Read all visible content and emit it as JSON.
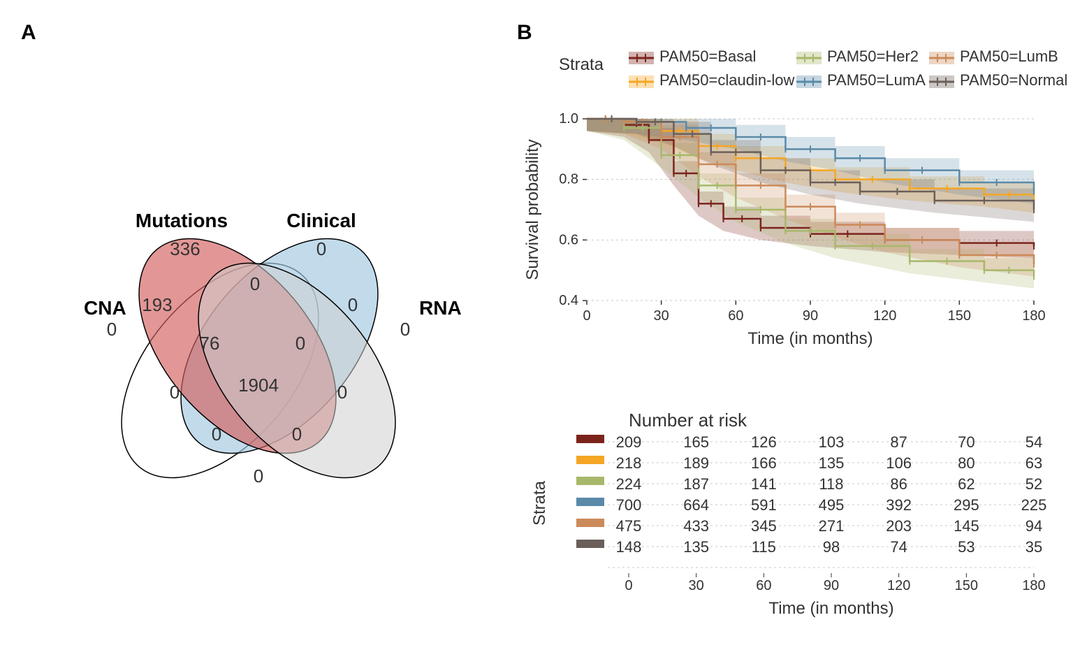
{
  "labels": {
    "panelA": "A",
    "panelB": "B"
  },
  "venn": {
    "set_labels": {
      "mutations": "Mutations",
      "clinical": "Clinical",
      "cna": "CNA",
      "rna": "RNA"
    },
    "set_colors": {
      "mutations": "#a2c8e0",
      "clinical": "#d2605e",
      "cna": "#ffffff",
      "rna": "#d0d0d0"
    },
    "stroke": "#000000",
    "stroke_width": 1.5,
    "label_fontsize": 28,
    "value_fontsize": 26,
    "values": {
      "mutations_only": "336",
      "clinical_only": "0",
      "cna_only": "0",
      "rna_only": "0",
      "mut_cna": "193",
      "mut_clin": "0",
      "clin_rna": "0",
      "mut_cna_clin": "76",
      "mut_clin_rna": "0",
      "center": "1904",
      "cna_clin": "0",
      "mut_rna": "0",
      "cna_rna": "0",
      "cna_clin_rna": "0",
      "bottom": "0"
    }
  },
  "survival": {
    "legend_title": "Strata",
    "legend_fontsize": 22,
    "strata": [
      {
        "label": "PAM50=Basal",
        "color": "#7b241c"
      },
      {
        "label": "PAM50=claudin-low",
        "color": "#f5a623"
      },
      {
        "label": "PAM50=Her2",
        "color": "#a8b86a"
      },
      {
        "label": "PAM50=LumA",
        "color": "#5a8aa8"
      },
      {
        "label": "PAM50=LumB",
        "color": "#cb8a5a"
      },
      {
        "label": "PAM50=Normal",
        "color": "#6b5f5a"
      }
    ],
    "ylabel": "Survival probability",
    "xlabel": "Time (in months)",
    "axis_fontsize": 24,
    "tick_fontsize": 20,
    "ylim": [
      0.4,
      1.0
    ],
    "yticks": [
      0.4,
      0.6,
      0.8,
      1.0
    ],
    "xlim": [
      0,
      180
    ],
    "xticks": [
      0,
      30,
      60,
      90,
      120,
      150,
      180
    ],
    "grid_color": "#c8c8c8",
    "background": "#ffffff",
    "ribbon_opacity": 0.25,
    "series": {
      "Basal": [
        [
          0,
          1.0
        ],
        [
          15,
          0.98
        ],
        [
          25,
          0.93
        ],
        [
          35,
          0.82
        ],
        [
          45,
          0.72
        ],
        [
          55,
          0.67
        ],
        [
          70,
          0.64
        ],
        [
          90,
          0.62
        ],
        [
          120,
          0.6
        ],
        [
          150,
          0.59
        ],
        [
          180,
          0.58
        ]
      ],
      "claudin-low": [
        [
          0,
          1.0
        ],
        [
          15,
          0.99
        ],
        [
          30,
          0.96
        ],
        [
          45,
          0.91
        ],
        [
          60,
          0.87
        ],
        [
          80,
          0.83
        ],
        [
          100,
          0.8
        ],
        [
          130,
          0.77
        ],
        [
          160,
          0.75
        ],
        [
          180,
          0.73
        ]
      ],
      "Her2": [
        [
          0,
          1.0
        ],
        [
          15,
          0.97
        ],
        [
          30,
          0.88
        ],
        [
          45,
          0.78
        ],
        [
          60,
          0.7
        ],
        [
          80,
          0.63
        ],
        [
          100,
          0.58
        ],
        [
          130,
          0.53
        ],
        [
          160,
          0.5
        ],
        [
          180,
          0.48
        ]
      ],
      "LumA": [
        [
          0,
          1.0
        ],
        [
          20,
          0.99
        ],
        [
          40,
          0.97
        ],
        [
          60,
          0.94
        ],
        [
          80,
          0.9
        ],
        [
          100,
          0.87
        ],
        [
          120,
          0.83
        ],
        [
          150,
          0.79
        ],
        [
          180,
          0.76
        ]
      ],
      "LumB": [
        [
          0,
          1.0
        ],
        [
          15,
          0.99
        ],
        [
          30,
          0.94
        ],
        [
          45,
          0.85
        ],
        [
          60,
          0.78
        ],
        [
          80,
          0.71
        ],
        [
          100,
          0.65
        ],
        [
          120,
          0.6
        ],
        [
          150,
          0.55
        ],
        [
          180,
          0.52
        ]
      ],
      "Normal": [
        [
          0,
          1.0
        ],
        [
          20,
          0.99
        ],
        [
          35,
          0.95
        ],
        [
          50,
          0.89
        ],
        [
          70,
          0.83
        ],
        [
          90,
          0.79
        ],
        [
          110,
          0.76
        ],
        [
          140,
          0.73
        ],
        [
          180,
          0.7
        ]
      ]
    }
  },
  "risk_table": {
    "title": "Number at risk",
    "title_fontsize": 26,
    "ylabel": "Strata",
    "xlabel": "Time (in months)",
    "xticks": [
      0,
      30,
      60,
      90,
      120,
      150,
      180
    ],
    "value_fontsize": 22,
    "grid_color": "#c8c8c8",
    "rows": [
      {
        "color": "#7b241c",
        "values": [
          209,
          165,
          126,
          103,
          87,
          70,
          54
        ]
      },
      {
        "color": "#f5a623",
        "values": [
          218,
          189,
          166,
          135,
          106,
          80,
          63
        ]
      },
      {
        "color": "#a8b86a",
        "values": [
          224,
          187,
          141,
          118,
          86,
          62,
          52
        ]
      },
      {
        "color": "#5a8aa8",
        "values": [
          700,
          664,
          591,
          495,
          392,
          295,
          225
        ]
      },
      {
        "color": "#cb8a5a",
        "values": [
          475,
          433,
          345,
          271,
          203,
          145,
          94
        ]
      },
      {
        "color": "#6b5f5a",
        "values": [
          148,
          135,
          115,
          98,
          74,
          53,
          35
        ]
      }
    ]
  }
}
